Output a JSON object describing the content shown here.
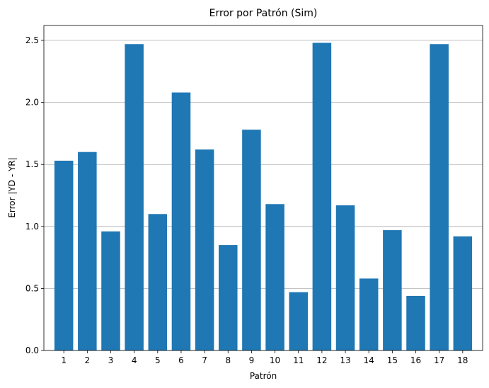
{
  "chart_data": {
    "type": "bar",
    "title": "Error por Patrón (Sim)",
    "xlabel": "Patrón",
    "ylabel": "Error |YD - YR|",
    "categories": [
      "1",
      "2",
      "3",
      "4",
      "5",
      "6",
      "7",
      "8",
      "9",
      "10",
      "11",
      "12",
      "13",
      "14",
      "15",
      "16",
      "17",
      "18"
    ],
    "values": [
      1.53,
      1.6,
      0.96,
      2.47,
      1.1,
      2.08,
      1.62,
      0.85,
      1.78,
      1.18,
      0.47,
      2.48,
      1.17,
      0.58,
      0.97,
      0.44,
      2.47,
      0.92
    ],
    "ylim": [
      0,
      2.62
    ],
    "yticks": [
      "0.0",
      "0.5",
      "1.0",
      "1.5",
      "2.0",
      "2.5"
    ],
    "grid": "y-axis",
    "bar_color": "#1f77b4"
  }
}
